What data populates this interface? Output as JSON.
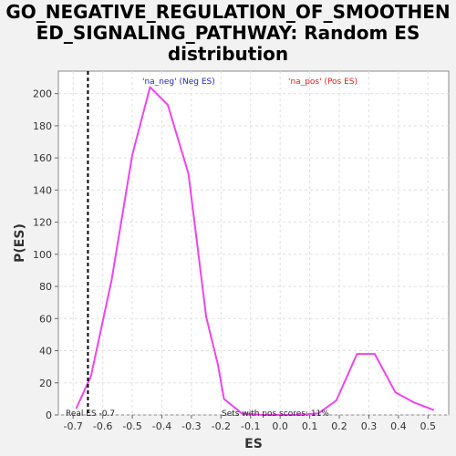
{
  "chart_data": {
    "type": "line",
    "title_lines": [
      "GO_NEGATIVE_REGULATION_OF_SMOOTHEN",
      "ED_SIGNALING_PATHWAY: Random ES",
      "distribution"
    ],
    "xlabel": "ES",
    "ylabel": "P(ES)",
    "xlim": [
      -0.75,
      0.57
    ],
    "ylim": [
      0,
      214
    ],
    "x_ticks": [
      -0.7,
      -0.6,
      -0.5,
      -0.4,
      -0.3,
      -0.2,
      -0.1,
      0.0,
      0.1,
      0.2,
      0.3,
      0.4,
      0.5
    ],
    "x_tick_labels": [
      "-0.7",
      "-0.6",
      "-0.5",
      "-0.4",
      "-0.3",
      "-0.2",
      "-0.1",
      "0.0",
      "0.1",
      "0.2",
      "0.3",
      "0.4",
      "0.5"
    ],
    "y_ticks": [
      0,
      20,
      40,
      60,
      80,
      100,
      120,
      140,
      160,
      180,
      200
    ],
    "y_tick_labels": [
      "0",
      "20",
      "40",
      "60",
      "80",
      "100",
      "120",
      "140",
      "160",
      "180",
      "200"
    ],
    "grid": true,
    "series": [
      {
        "color": "#ee44ee",
        "x": [
          -0.69,
          -0.64,
          -0.57,
          -0.5,
          -0.44,
          -0.38,
          -0.31,
          -0.25,
          -0.21,
          -0.19,
          -0.13,
          -0.06,
          0.0,
          0.06,
          0.13,
          0.19,
          0.26,
          0.32,
          0.39,
          0.45,
          0.52
        ],
        "y": [
          4,
          24,
          84,
          162,
          204,
          193,
          150,
          61,
          31,
          10,
          1,
          0,
          0,
          0,
          1,
          9,
          38,
          38,
          14,
          8,
          3
        ]
      }
    ],
    "real_es": -0.65,
    "annotations": {
      "neg_label": "'na_neg' (Neg ES)",
      "pos_label": "'na_pos' (Pos ES)",
      "real_es_label": "Real ES -0.7",
      "pos_scores_label": "Sets with pos scores: 11%"
    },
    "colors": {
      "neg_label": "#2222cc",
      "pos_label": "#dd2222",
      "real_es_line": "#000000",
      "plot_bg": "#ffffff",
      "grid": "#e0e0e0"
    }
  }
}
